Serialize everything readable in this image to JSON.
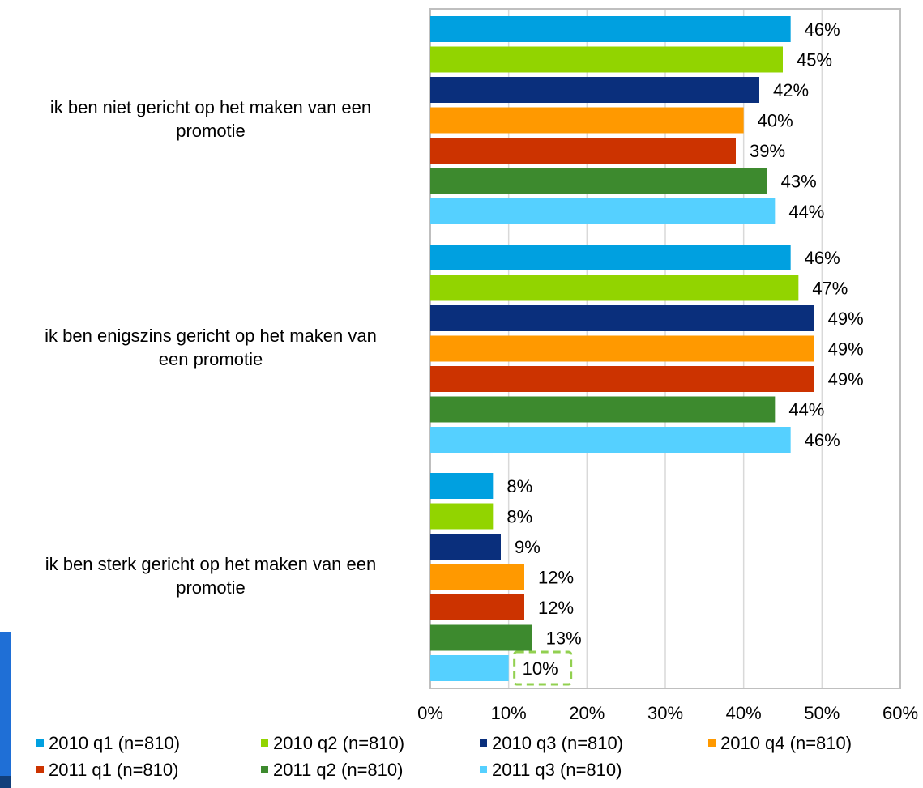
{
  "chart_data": {
    "type": "bar",
    "orientation": "horizontal",
    "categories": [
      "ik ben niet gericht op het maken van een promotie",
      "ik ben enigszins gericht op het maken van een promotie",
      "ik ben sterk gericht op het maken van een promotie"
    ],
    "category_lines": [
      [
        "ik ben niet gericht op het maken van een",
        "promotie"
      ],
      [
        "ik ben enigszins gericht op het maken van",
        "een promotie"
      ],
      [
        "ik ben sterk gericht op het maken van een",
        "promotie"
      ]
    ],
    "series": [
      {
        "name": "2010 q1 (n=810)",
        "color": "#00a0e0",
        "values": [
          46,
          46,
          8
        ],
        "labels": [
          "46%",
          "46%",
          "8%"
        ]
      },
      {
        "name": "2010 q2 (n=810)",
        "color": "#92d400",
        "values": [
          45,
          47,
          8
        ],
        "labels": [
          "45%",
          "47%",
          "8%"
        ]
      },
      {
        "name": "2010 q3 (n=810)",
        "color": "#0a2f7c",
        "values": [
          42,
          49,
          9
        ],
        "labels": [
          "42%",
          "49%",
          "9%"
        ]
      },
      {
        "name": "2010 q4 (n=810)",
        "color": "#ff9900",
        "values": [
          40,
          49,
          12
        ],
        "labels": [
          "40%",
          "49%",
          "12%"
        ]
      },
      {
        "name": "2011 q1 (n=810)",
        "color": "#cc3300",
        "values": [
          39,
          49,
          12
        ],
        "labels": [
          "39%",
          "49%",
          "12%"
        ]
      },
      {
        "name": "2011 q2 (n=810)",
        "color": "#3d8a2e",
        "values": [
          43,
          44,
          13
        ],
        "labels": [
          "43%",
          "44%",
          "13%"
        ]
      },
      {
        "name": "2011 q3 (n=810)",
        "color": "#55d0ff",
        "values": [
          44,
          46,
          10
        ],
        "labels": [
          "44%",
          "46%",
          "10%"
        ]
      }
    ],
    "xlim": [
      0,
      60
    ],
    "x_ticks": [
      0,
      10,
      20,
      30,
      40,
      50,
      60
    ],
    "x_tick_labels": [
      "0%",
      "10%",
      "20%",
      "30%",
      "40%",
      "50%",
      "60%"
    ],
    "grid": "vertical",
    "legend_position": "bottom",
    "highlighted_label": {
      "series": 6,
      "category": 2,
      "style": "dashed-green-box"
    }
  }
}
